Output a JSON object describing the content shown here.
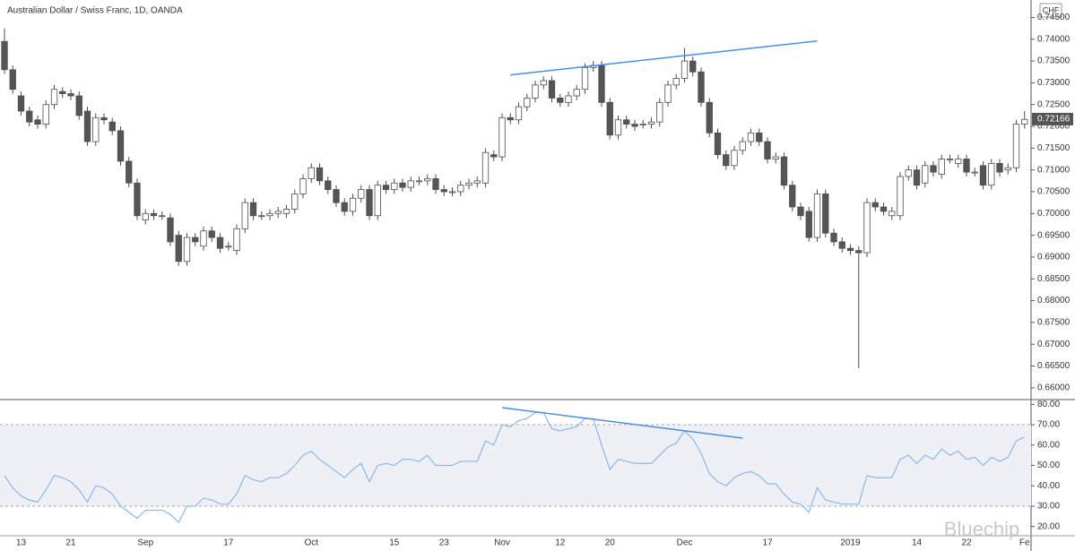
{
  "watermark": "Bluechip",
  "chart_data": [
    {
      "type": "candlestick",
      "title": "Australian Dollar / Swiss Franc, 1D, OANDA",
      "currency": "CHF",
      "grid": false,
      "up_color": "#ffffff",
      "down_color": "#555555",
      "edge_color": "#4d4d4d",
      "trend_color": "#4a8fe0",
      "ylim": [
        0.6575,
        0.749
      ],
      "yticks": [
        {
          "value": 0.66,
          "label": "0.66000"
        },
        {
          "value": 0.665,
          "label": "0.66500"
        },
        {
          "value": 0.67,
          "label": "0.67000"
        },
        {
          "value": 0.675,
          "label": "0.67500"
        },
        {
          "value": 0.68,
          "label": "0.68000"
        },
        {
          "value": 0.685,
          "label": "0.68500"
        },
        {
          "value": 0.69,
          "label": "0.69000"
        },
        {
          "value": 0.695,
          "label": "0.69500"
        },
        {
          "value": 0.7,
          "label": "0.70000"
        },
        {
          "value": 0.705,
          "label": "0.70500"
        },
        {
          "value": 0.71,
          "label": "0.71000"
        },
        {
          "value": 0.715,
          "label": "0.71500"
        },
        {
          "value": 0.72,
          "label": "0.72000"
        },
        {
          "value": 0.725,
          "label": "0.72500"
        },
        {
          "value": 0.73,
          "label": "0.73000"
        },
        {
          "value": 0.735,
          "label": "0.73500"
        },
        {
          "value": 0.74,
          "label": "0.74000"
        },
        {
          "value": 0.745,
          "label": "0.74500"
        }
      ],
      "last_price": 0.72166,
      "open": [
        0.7395,
        0.733,
        0.727,
        0.7235,
        0.7215,
        0.7205,
        0.725,
        0.728,
        0.7275,
        0.727,
        0.7235,
        0.7165,
        0.722,
        0.721,
        0.719,
        0.712,
        0.707,
        0.6985,
        0.7,
        0.6995,
        0.699,
        0.695,
        0.689,
        0.6945,
        0.6925,
        0.696,
        0.6945,
        0.6925,
        0.6915,
        0.6965,
        0.7025,
        0.6995,
        0.6995,
        0.7,
        0.7,
        0.701,
        0.7045,
        0.708,
        0.7105,
        0.7075,
        0.7055,
        0.7025,
        0.7005,
        0.7035,
        0.7055,
        0.6995,
        0.7065,
        0.7055,
        0.707,
        0.706,
        0.7075,
        0.7075,
        0.708,
        0.7055,
        0.705,
        0.705,
        0.7065,
        0.707,
        0.707,
        0.7135,
        0.713,
        0.722,
        0.7215,
        0.7245,
        0.7265,
        0.7295,
        0.7305,
        0.7265,
        0.7255,
        0.727,
        0.7285,
        0.7335,
        0.734,
        0.7255,
        0.718,
        0.7215,
        0.7205,
        0.7205,
        0.7205,
        0.721,
        0.7255,
        0.7295,
        0.731,
        0.735,
        0.7325,
        0.7255,
        0.7185,
        0.7135,
        0.711,
        0.7145,
        0.7165,
        0.7185,
        0.7165,
        0.7125,
        0.713,
        0.7065,
        0.7015,
        0.7005,
        0.6945,
        0.7045,
        0.6955,
        0.6935,
        0.692,
        0.6915,
        0.691,
        0.7025,
        0.7015,
        0.6995,
        0.6995,
        0.7085,
        0.71,
        0.707,
        0.711,
        0.709,
        0.7125,
        0.7115,
        0.7125,
        0.7095,
        0.711,
        0.7065,
        0.7115,
        0.71,
        0.7105,
        0.7205
      ],
      "high": [
        0.7425,
        0.734,
        0.728,
        0.7245,
        0.7225,
        0.726,
        0.7295,
        0.729,
        0.7285,
        0.728,
        0.7245,
        0.723,
        0.723,
        0.722,
        0.72,
        0.713,
        0.708,
        0.701,
        0.701,
        0.7005,
        0.7,
        0.696,
        0.6955,
        0.6955,
        0.697,
        0.697,
        0.6955,
        0.6935,
        0.6975,
        0.7035,
        0.7035,
        0.7005,
        0.701,
        0.7015,
        0.702,
        0.7055,
        0.709,
        0.7115,
        0.7115,
        0.7085,
        0.7065,
        0.7035,
        0.7045,
        0.7065,
        0.7065,
        0.7075,
        0.7075,
        0.708,
        0.708,
        0.7085,
        0.7085,
        0.709,
        0.709,
        0.7065,
        0.706,
        0.7075,
        0.708,
        0.7085,
        0.715,
        0.7145,
        0.723,
        0.723,
        0.7255,
        0.7275,
        0.7305,
        0.7315,
        0.7315,
        0.7275,
        0.728,
        0.7295,
        0.7345,
        0.735,
        0.735,
        0.7265,
        0.7225,
        0.7225,
        0.7215,
        0.7215,
        0.722,
        0.7265,
        0.7305,
        0.732,
        0.738,
        0.736,
        0.7335,
        0.7265,
        0.7195,
        0.7145,
        0.7155,
        0.7175,
        0.7195,
        0.7195,
        0.7175,
        0.714,
        0.714,
        0.7075,
        0.7025,
        0.7015,
        0.7055,
        0.7055,
        0.6965,
        0.6945,
        0.693,
        0.6925,
        0.7035,
        0.7035,
        0.7025,
        0.7015,
        0.7095,
        0.711,
        0.711,
        0.712,
        0.712,
        0.7135,
        0.7135,
        0.7135,
        0.7135,
        0.7105,
        0.712,
        0.7125,
        0.7125,
        0.7115,
        0.7215,
        0.7235
      ],
      "low": [
        0.732,
        0.7275,
        0.7225,
        0.72,
        0.7195,
        0.7195,
        0.724,
        0.7265,
        0.726,
        0.7215,
        0.7155,
        0.7155,
        0.7205,
        0.718,
        0.711,
        0.706,
        0.6985,
        0.6975,
        0.6985,
        0.6985,
        0.6925,
        0.688,
        0.688,
        0.6925,
        0.6915,
        0.6935,
        0.691,
        0.6915,
        0.6905,
        0.6955,
        0.6985,
        0.6985,
        0.6985,
        0.699,
        0.699,
        0.7,
        0.7035,
        0.707,
        0.7065,
        0.7045,
        0.7015,
        0.6995,
        0.6995,
        0.7025,
        0.6985,
        0.6985,
        0.7045,
        0.7045,
        0.705,
        0.705,
        0.7065,
        0.7065,
        0.7045,
        0.704,
        0.704,
        0.704,
        0.7055,
        0.706,
        0.706,
        0.712,
        0.712,
        0.7205,
        0.7205,
        0.7235,
        0.7255,
        0.7285,
        0.7255,
        0.7245,
        0.7245,
        0.726,
        0.7275,
        0.7325,
        0.7245,
        0.717,
        0.717,
        0.7195,
        0.719,
        0.7195,
        0.7195,
        0.72,
        0.7245,
        0.7285,
        0.73,
        0.7315,
        0.7245,
        0.7175,
        0.7125,
        0.71,
        0.71,
        0.7135,
        0.7155,
        0.7155,
        0.7115,
        0.7115,
        0.7055,
        0.7005,
        0.6985,
        0.6935,
        0.6935,
        0.6945,
        0.6925,
        0.691,
        0.6905,
        0.6645,
        0.69,
        0.7005,
        0.6995,
        0.6985,
        0.6985,
        0.7075,
        0.7055,
        0.706,
        0.7085,
        0.708,
        0.7115,
        0.7105,
        0.7085,
        0.7085,
        0.7055,
        0.7055,
        0.7085,
        0.709,
        0.7095,
        0.7195
      ],
      "close": [
        0.733,
        0.7285,
        0.7235,
        0.721,
        0.7205,
        0.725,
        0.7285,
        0.7275,
        0.727,
        0.7225,
        0.7165,
        0.722,
        0.7215,
        0.719,
        0.712,
        0.707,
        0.6995,
        0.7,
        0.6995,
        0.6995,
        0.6935,
        0.689,
        0.6945,
        0.6935,
        0.696,
        0.6945,
        0.692,
        0.6925,
        0.6965,
        0.7025,
        0.6995,
        0.6995,
        0.7,
        0.7005,
        0.701,
        0.7045,
        0.708,
        0.7105,
        0.7075,
        0.7055,
        0.7025,
        0.7005,
        0.7035,
        0.7055,
        0.6995,
        0.7065,
        0.7055,
        0.707,
        0.706,
        0.7075,
        0.7075,
        0.708,
        0.7055,
        0.705,
        0.705,
        0.7065,
        0.707,
        0.7075,
        0.714,
        0.713,
        0.722,
        0.7215,
        0.7245,
        0.7265,
        0.7295,
        0.7305,
        0.7265,
        0.7255,
        0.727,
        0.7285,
        0.7335,
        0.734,
        0.7255,
        0.718,
        0.7215,
        0.7205,
        0.72,
        0.7205,
        0.721,
        0.7255,
        0.7295,
        0.731,
        0.735,
        0.7325,
        0.7255,
        0.7185,
        0.7135,
        0.711,
        0.7145,
        0.7165,
        0.7185,
        0.7165,
        0.7125,
        0.713,
        0.7065,
        0.7015,
        0.6995,
        0.6945,
        0.7045,
        0.6955,
        0.6935,
        0.692,
        0.6915,
        0.691,
        0.7025,
        0.7015,
        0.7005,
        0.7005,
        0.7085,
        0.71,
        0.7065,
        0.711,
        0.7095,
        0.7125,
        0.7125,
        0.7125,
        0.7095,
        0.7095,
        0.7065,
        0.7115,
        0.7095,
        0.7105,
        0.7205,
        0.7216
      ],
      "trend_line": {
        "x": [
          61,
          98
        ],
        "y": [
          0.7318,
          0.7396
        ]
      }
    },
    {
      "type": "line",
      "color": "#8ab8ea",
      "trend_color": "#4a8fe0",
      "band_color": "#eef0f6",
      "ylim": [
        15.9,
        81.9
      ],
      "yticks": [
        {
          "value": 20,
          "label": "20.00"
        },
        {
          "value": 30,
          "label": "30.00"
        },
        {
          "value": 40,
          "label": "40.00"
        },
        {
          "value": 50,
          "label": "50.00"
        },
        {
          "value": 60,
          "label": "60.00"
        },
        {
          "value": 70,
          "label": "70.00"
        },
        {
          "value": 80,
          "label": "80.00"
        }
      ],
      "bands": [
        30,
        70
      ],
      "categories": [
        null,
        null,
        "13",
        null,
        null,
        null,
        null,
        null,
        "21",
        null,
        null,
        null,
        null,
        null,
        null,
        null,
        null,
        "Sep",
        null,
        null,
        null,
        null,
        null,
        null,
        null,
        null,
        null,
        "17",
        null,
        null,
        null,
        null,
        null,
        null,
        null,
        null,
        null,
        "Oct",
        null,
        null,
        null,
        null,
        null,
        null,
        null,
        null,
        null,
        "15",
        null,
        null,
        null,
        null,
        null,
        "23",
        null,
        null,
        null,
        null,
        null,
        null,
        "Nov",
        null,
        null,
        null,
        null,
        null,
        null,
        "12",
        null,
        null,
        null,
        null,
        null,
        "20",
        null,
        null,
        null,
        null,
        null,
        null,
        null,
        null,
        "Dec",
        null,
        null,
        null,
        null,
        null,
        null,
        null,
        null,
        null,
        "17",
        null,
        null,
        null,
        null,
        null,
        null,
        null,
        null,
        null,
        "2019",
        null,
        null,
        null,
        null,
        null,
        null,
        null,
        "14",
        null,
        null,
        null,
        null,
        null,
        "22",
        null,
        null,
        null,
        null,
        null,
        null,
        "Fe"
      ],
      "values": [
        45,
        39,
        35,
        33,
        32,
        38,
        45,
        44,
        42,
        38,
        32,
        40,
        39,
        36,
        30,
        27,
        24,
        28,
        28,
        28,
        26,
        22,
        30,
        30,
        34,
        33,
        31,
        31,
        36,
        45,
        43,
        42,
        44,
        44,
        46,
        50,
        55,
        57,
        53,
        50,
        47,
        44,
        48,
        51,
        42,
        50,
        51,
        50,
        53,
        53,
        52,
        55,
        50,
        50,
        50,
        52,
        52,
        52,
        62,
        60,
        70,
        69,
        72,
        73,
        76,
        76,
        68,
        67,
        68,
        69,
        73,
        73,
        60,
        48,
        53,
        52,
        51,
        51,
        51,
        55,
        59,
        61,
        67,
        63,
        56,
        46,
        42,
        40,
        44,
        46,
        47,
        45,
        41,
        41,
        36,
        32,
        31,
        27,
        39,
        33,
        32,
        31,
        31,
        31,
        45,
        44,
        44,
        44,
        53,
        55,
        51,
        55,
        53,
        58,
        55,
        57,
        53,
        54,
        50,
        54,
        52,
        54,
        62,
        64
      ],
      "trend_line": {
        "x": [
          60,
          89
        ],
        "y": [
          78.4,
          63.4
        ]
      }
    }
  ]
}
